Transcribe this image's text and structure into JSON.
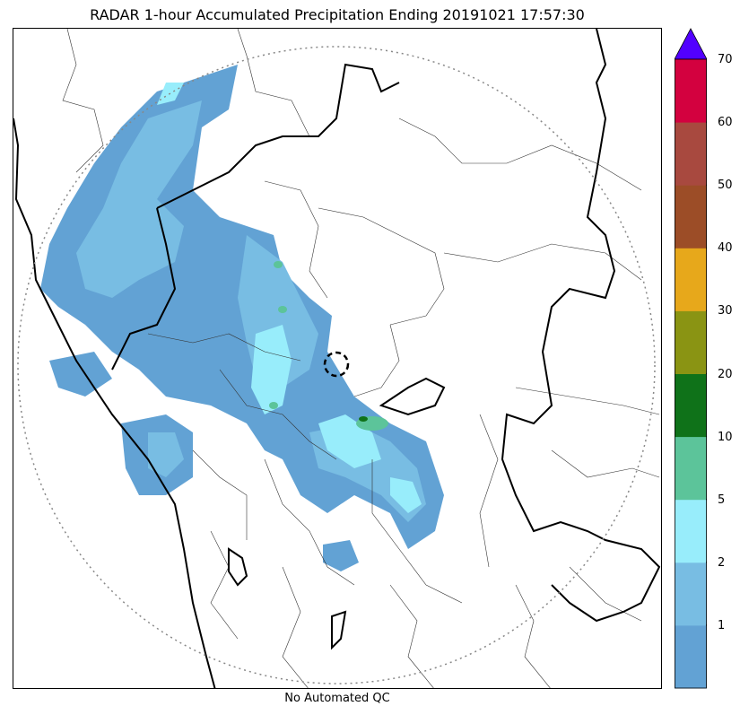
{
  "header": {
    "title": "RADAR 1-hour Accumulated Precipitation Ending 20191021 17:57:30"
  },
  "footer": {
    "qc_note": "No Automated QC"
  },
  "colorbar": {
    "bins": [
      {
        "lower": 0,
        "upper": 1,
        "color": "#62a2d4"
      },
      {
        "lower": 1,
        "upper": 2,
        "color": "#78bde3"
      },
      {
        "lower": 2,
        "upper": 5,
        "color": "#98edfb"
      },
      {
        "lower": 5,
        "upper": 10,
        "color": "#5cc49a"
      },
      {
        "lower": 10,
        "upper": 20,
        "color": "#0f7219"
      },
      {
        "lower": 20,
        "upper": 30,
        "color": "#8a9413"
      },
      {
        "lower": 30,
        "upper": 40,
        "color": "#e7a81b"
      },
      {
        "lower": 40,
        "upper": 50,
        "color": "#9c4d27"
      },
      {
        "lower": 50,
        "upper": 60,
        "color": "#a8493f"
      },
      {
        "lower": 60,
        "upper": 70,
        "color": "#d3013f"
      }
    ],
    "overflow_color": "#5200ff",
    "tick_labels": [
      "1",
      "2",
      "5",
      "10",
      "20",
      "30",
      "40",
      "50",
      "60",
      "70"
    ]
  },
  "map": {
    "range_ring": "dotted circle around radar",
    "radar_marker": "dashed circle at radar site"
  }
}
